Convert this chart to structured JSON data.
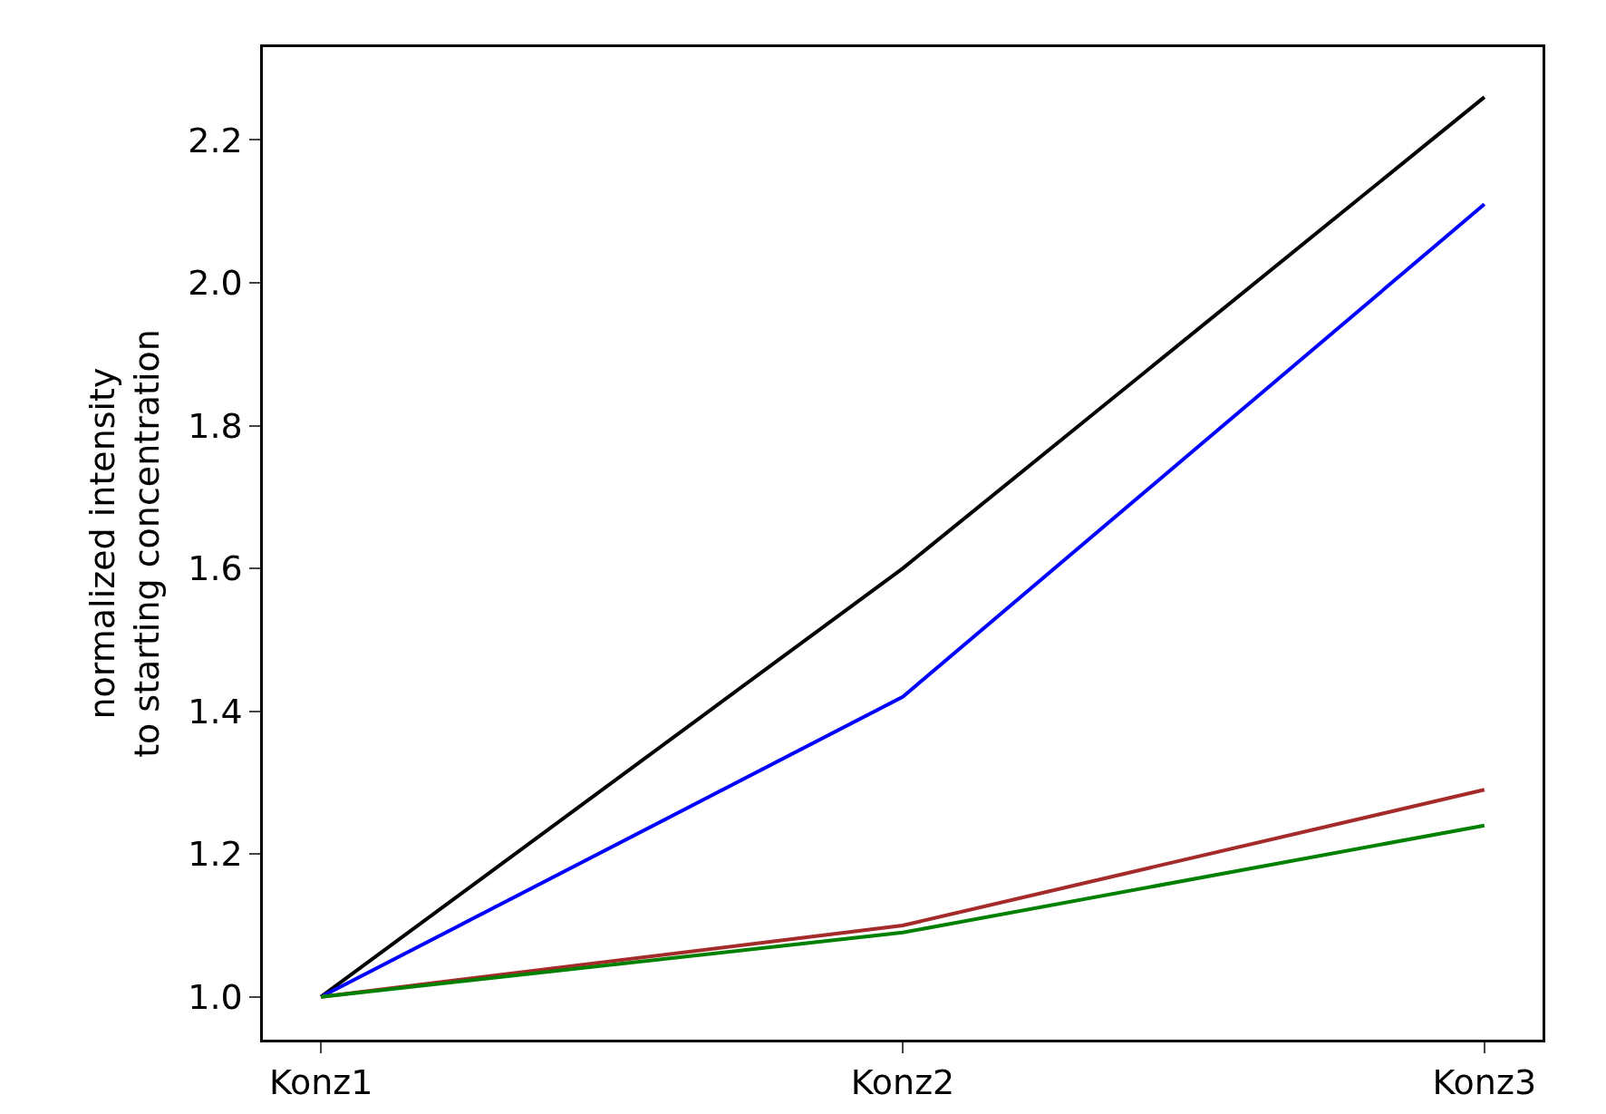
{
  "chart_data": {
    "type": "line",
    "ylabel": "normalized intensity\nto starting concentration",
    "categories": [
      "Konz1",
      "Konz2",
      "Konz3"
    ],
    "series": [
      {
        "color": "#000000",
        "values": [
          1.0,
          1.6,
          2.26
        ]
      },
      {
        "color": "#0000ff",
        "values": [
          1.0,
          1.42,
          2.11
        ]
      },
      {
        "color": "#a52a2a",
        "values": [
          1.0,
          1.1,
          1.29
        ]
      },
      {
        "color": "#008000",
        "values": [
          1.0,
          1.09,
          1.24
        ]
      }
    ],
    "ylim": [
      0.94,
      2.33
    ],
    "yticks": [
      {
        "value": 1.0,
        "label": "1.0"
      },
      {
        "value": 1.2,
        "label": "1.2"
      },
      {
        "value": 1.4,
        "label": "1.4"
      },
      {
        "value": 1.6,
        "label": "1.6"
      },
      {
        "value": 1.8,
        "label": "1.8"
      },
      {
        "value": 2.0,
        "label": "2.0"
      },
      {
        "value": 2.2,
        "label": "2.2"
      }
    ],
    "grid": false,
    "marker": "none",
    "line_style": "solid"
  }
}
